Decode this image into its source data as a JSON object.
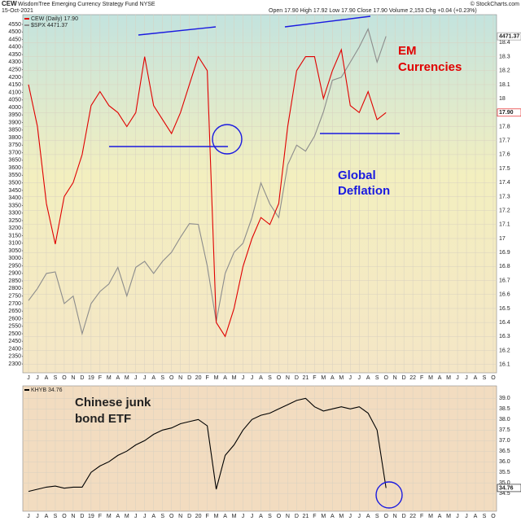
{
  "chart_data": [
    {
      "type": "line",
      "title": "CEW",
      "subtitle": "WisdomTree Emerging Currency Strategy Fund NYSE",
      "date": "15-Oct-2021",
      "quote": "Open 17.90  High 17.92  Low 17.90  Close 17.90  Volume 2,153  Chg +0.04 (+0.23%)",
      "credit": "© StockCharts.com",
      "annotations": [
        "EM",
        "Currencies",
        "Global",
        "Deflation"
      ],
      "categories": [
        "J",
        "J",
        "A",
        "S",
        "O",
        "N",
        "D",
        "19",
        "F",
        "M",
        "A",
        "M",
        "J",
        "J",
        "A",
        "S",
        "O",
        "N",
        "D",
        "20",
        "F",
        "M",
        "A",
        "M",
        "J",
        "J",
        "A",
        "S",
        "O",
        "N",
        "D",
        "21",
        "F",
        "M",
        "A",
        "M",
        "J",
        "J",
        "A",
        "S",
        "O",
        "N",
        "D",
        "22",
        "F",
        "M",
        "A",
        "M",
        "J",
        "J",
        "A",
        "S",
        "O"
      ],
      "ylim": [
        2241,
        4615
      ],
      "yticks": [
        2300,
        2350,
        2400,
        2450,
        2500,
        2550,
        2600,
        2650,
        2700,
        2750,
        2800,
        2850,
        2900,
        2950,
        3000,
        3050,
        3100,
        3150,
        3200,
        3250,
        3300,
        3350,
        3400,
        3450,
        3500,
        3550,
        3600,
        3650,
        3700,
        3750,
        3800,
        3850,
        3900,
        3950,
        4000,
        4050,
        4100,
        4150,
        4200,
        4250,
        4300,
        4350,
        4400,
        4450,
        4500,
        4550
      ],
      "y2lim": [
        16.04,
        18.6
      ],
      "y2ticks": [
        16.1,
        16.2,
        16.3,
        16.4,
        16.5,
        16.6,
        16.7,
        16.8,
        16.9,
        17,
        17.1,
        17.2,
        17.3,
        17.4,
        17.5,
        17.6,
        17.7,
        17.8,
        17.9,
        18,
        18.1,
        18.2,
        18.3,
        18.4
      ],
      "grid": true,
      "series": [
        {
          "name": "$SPX 4471.37",
          "color": "#8c8c8c",
          "axis": "y",
          "values": [
            2720,
            2800,
            2900,
            2910,
            2700,
            2750,
            2500,
            2700,
            2780,
            2830,
            2940,
            2750,
            2940,
            2980,
            2900,
            2980,
            3040,
            3140,
            3230,
            3225,
            2950,
            2580,
            2900,
            3040,
            3100,
            3270,
            3500,
            3360,
            3270,
            3620,
            3750,
            3710,
            3810,
            3970,
            4180,
            4200,
            4300,
            4400,
            4520,
            4300,
            4471.37,
            null,
            null,
            null,
            null,
            null,
            null,
            null,
            null,
            null,
            null,
            null,
            null
          ]
        },
        {
          "name": "CEW (Daily) 17.90",
          "color": "#e00000",
          "axis": "y2",
          "last_label": "17.90",
          "values": [
            18.1,
            17.8,
            17.25,
            16.96,
            17.3,
            17.4,
            17.6,
            17.95,
            18.05,
            17.95,
            17.9,
            17.8,
            17.9,
            18.3,
            17.95,
            17.85,
            17.75,
            17.9,
            18.1,
            18.3,
            18.2,
            16.4,
            16.3,
            16.5,
            16.8,
            17.0,
            17.15,
            17.1,
            17.25,
            17.8,
            18.2,
            18.3,
            18.3,
            18.0,
            18.2,
            18.35,
            17.95,
            17.9,
            18.05,
            17.85,
            17.9,
            null,
            null,
            null,
            null,
            null,
            null,
            null,
            null,
            null,
            null,
            null,
            null
          ]
        }
      ]
    },
    {
      "type": "line",
      "annotations": [
        "Chinese junk",
        "bond ETF"
      ],
      "categories": [
        "J",
        "J",
        "A",
        "S",
        "O",
        "N",
        "D",
        "19",
        "F",
        "M",
        "A",
        "M",
        "J",
        "J",
        "A",
        "S",
        "O",
        "N",
        "D",
        "20",
        "F",
        "M",
        "A",
        "M",
        "J",
        "J",
        "A",
        "S",
        "O",
        "N",
        "D",
        "21",
        "F",
        "M",
        "A",
        "M",
        "J",
        "J",
        "A",
        "S",
        "O",
        "N",
        "D",
        "22",
        "F",
        "M",
        "A",
        "M",
        "J",
        "J",
        "A",
        "S",
        "O"
      ],
      "y2lim": [
        33.66,
        39.59
      ],
      "y2ticks": [
        34.5,
        {
          "value": 35,
          "label": "35.0"
        },
        35.5,
        {
          "value": 36,
          "label": "36.0"
        },
        36.5,
        {
          "value": 37,
          "label": "37.0"
        },
        37.5,
        {
          "value": 38,
          "label": "38.0"
        },
        38.5,
        {
          "value": 39,
          "label": "39.0"
        }
      ],
      "grid": true,
      "series": [
        {
          "name": "KHYB 34.76",
          "color": "#000000",
          "axis": "y2",
          "values": [
            34.6,
            34.7,
            34.8,
            34.85,
            34.75,
            34.8,
            34.8,
            35.5,
            35.8,
            36.0,
            36.3,
            36.5,
            36.8,
            37.0,
            37.3,
            37.5,
            37.6,
            37.8,
            37.9,
            38.0,
            37.7,
            34.7,
            36.3,
            36.8,
            37.5,
            38.0,
            38.2,
            38.3,
            38.5,
            38.7,
            38.9,
            39.0,
            38.6,
            38.4,
            38.5,
            38.6,
            38.5,
            38.6,
            38.3,
            37.5,
            34.76,
            null,
            null,
            null,
            null,
            null,
            null,
            null,
            null,
            null,
            null,
            null,
            null
          ]
        }
      ]
    }
  ]
}
